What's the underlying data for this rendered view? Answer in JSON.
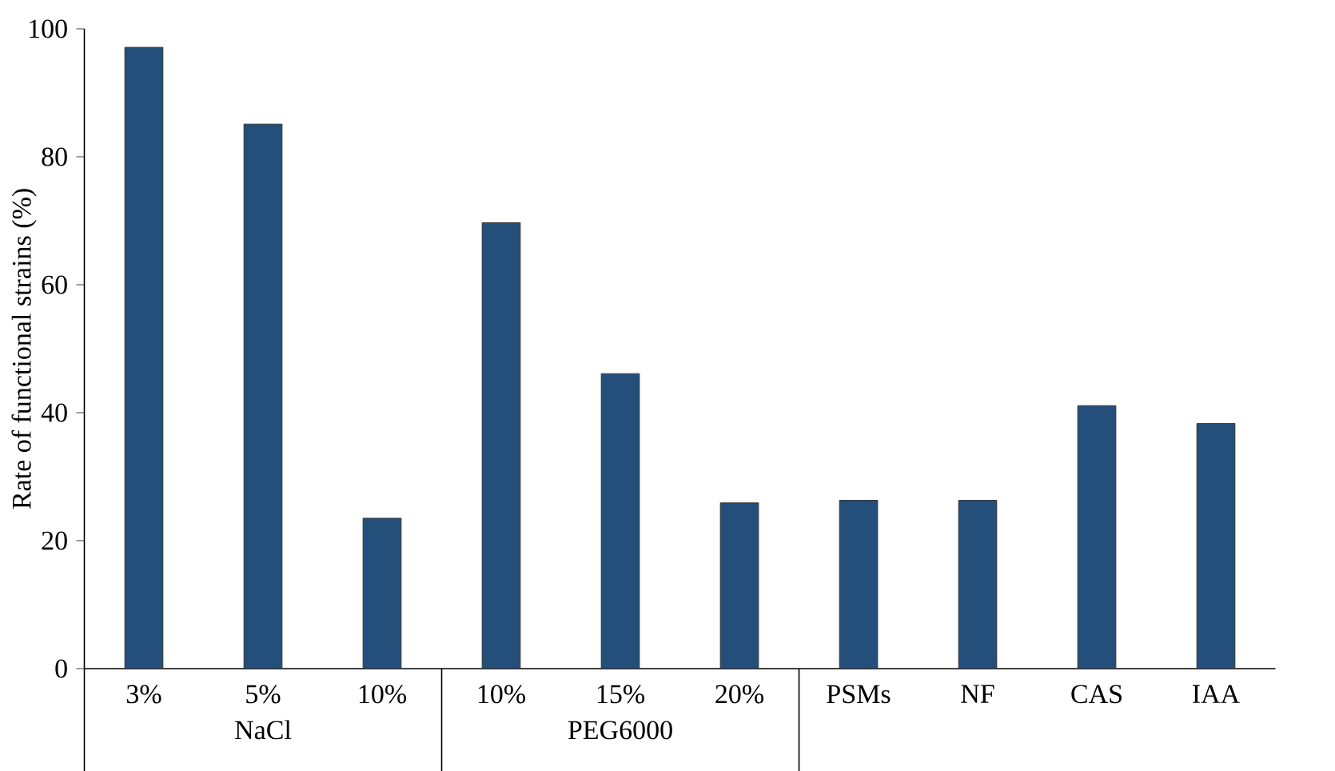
{
  "chart_data": {
    "type": "bar",
    "ylabel": "Rate of functional strains (%)",
    "categories": [
      "3%",
      "5%",
      "10%",
      "10%",
      "15%",
      "20%",
      "PSMs",
      "NF",
      "CAS",
      "IAA"
    ],
    "values": [
      97.1,
      85.1,
      23.5,
      69.7,
      46.1,
      25.9,
      26.3,
      26.3,
      41.1,
      38.3
    ],
    "color": "#234f7a",
    "ylim": [
      0,
      100
    ],
    "yticks": [
      0,
      20,
      40,
      60,
      80,
      100
    ],
    "annotations": [
      "NaCl",
      "PEG6000"
    ]
  }
}
